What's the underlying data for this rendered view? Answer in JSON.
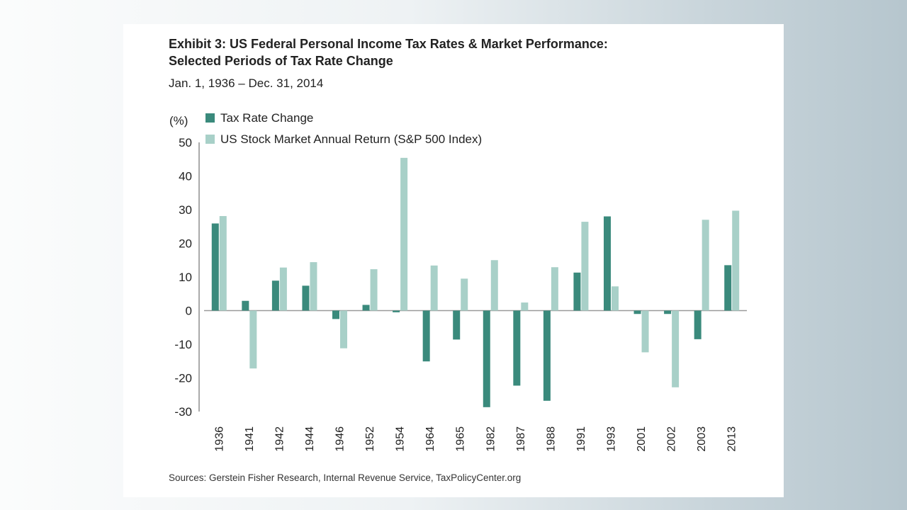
{
  "chart_data": {
    "type": "bar",
    "title": "Exhibit 3: US Federal Personal Income Tax Rates & Market Performance:",
    "title_line2": "Selected Periods of Tax Rate Change",
    "subtitle": "Jan. 1, 1936 – Dec. 31, 2014",
    "ylabel": "(%)",
    "xlabel": "",
    "ylim": [
      -30,
      50
    ],
    "yticks": [
      50,
      40,
      30,
      20,
      10,
      0,
      -10,
      -20,
      -30
    ],
    "categories": [
      "1936",
      "1941",
      "1942",
      "1944",
      "1946",
      "1952",
      "1954",
      "1964",
      "1965",
      "1982",
      "1987",
      "1988",
      "1991",
      "1993",
      "2001",
      "2002",
      "2003",
      "2013"
    ],
    "series": [
      {
        "name": "Tax Rate Change",
        "color": "#3a8a7c",
        "values": [
          25.9,
          2.9,
          8.9,
          7.4,
          -2.5,
          1.7,
          -0.5,
          -15.1,
          -8.6,
          -28.7,
          -22.3,
          -26.8,
          11.3,
          28.0,
          -1.0,
          -1.0,
          -8.5,
          13.5
        ]
      },
      {
        "name": "US Stock Market Annual Return (S&P 500 Index)",
        "color": "#a8d0c8",
        "values": [
          28.1,
          -17.2,
          12.8,
          14.4,
          -11.2,
          12.3,
          45.4,
          13.4,
          9.5,
          15.0,
          2.4,
          12.9,
          26.4,
          7.2,
          -12.4,
          -22.8,
          27.0,
          29.7
        ]
      }
    ],
    "legend_position": "top-left",
    "grid": false
  },
  "footer": {
    "sources": "Sources: Gerstein Fisher Research, Internal Revenue Service, TaxPolicyCenter.org"
  }
}
